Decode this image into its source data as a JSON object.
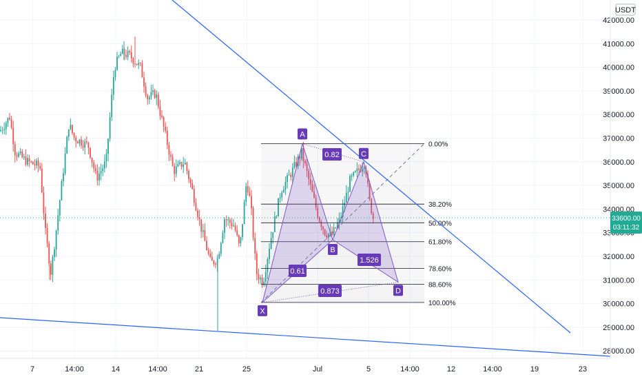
{
  "chart_data": {
    "type": "candlestick",
    "currency": "USDT",
    "y_axis_ticks": [
      "42000.00",
      "41000.00",
      "40000.00",
      "39000.00",
      "38000.00",
      "37000.00",
      "36000.00",
      "35000.00",
      "34000.00",
      "33000.00",
      "32000.00",
      "31000.00",
      "30000.00",
      "29000.00",
      "28000.00"
    ],
    "y_range": [
      27500,
      42500
    ],
    "x_axis_ticks": [
      "7",
      "14:00",
      "14",
      "14:00",
      "21",
      "25",
      "Jul",
      "5",
      "14:00",
      "12",
      "14:00",
      "19",
      "23"
    ],
    "last_price": "33600.00",
    "countdown": "03:11:32",
    "fib_levels": [
      {
        "label": "0.00%",
        "price": 36770
      },
      {
        "label": "38.20%",
        "price": 34210
      },
      {
        "label": "50.00%",
        "price": 33420
      },
      {
        "label": "61.80%",
        "price": 32620
      },
      {
        "label": "78.60%",
        "price": 31490
      },
      {
        "label": "88.60%",
        "price": 30820
      },
      {
        "label": "100.00%",
        "price": 30050
      }
    ],
    "pattern_points": [
      {
        "name": "X",
        "price": 30050
      },
      {
        "name": "A",
        "price": 36770
      },
      {
        "name": "B",
        "price": 32700
      },
      {
        "name": "C",
        "price": 36000
      },
      {
        "name": "D",
        "price": 30910
      }
    ],
    "ratios": [
      "0.82",
      "0.61",
      "1.526",
      "0.873"
    ],
    "colors": {
      "up": "#26a69a",
      "down": "#ef5350",
      "trendline": "#2962ff",
      "pattern": "#7e57c2",
      "label_bg": "#673ab7",
      "fib_fill": "#787b86",
      "price_tag": "#22ab94"
    }
  }
}
